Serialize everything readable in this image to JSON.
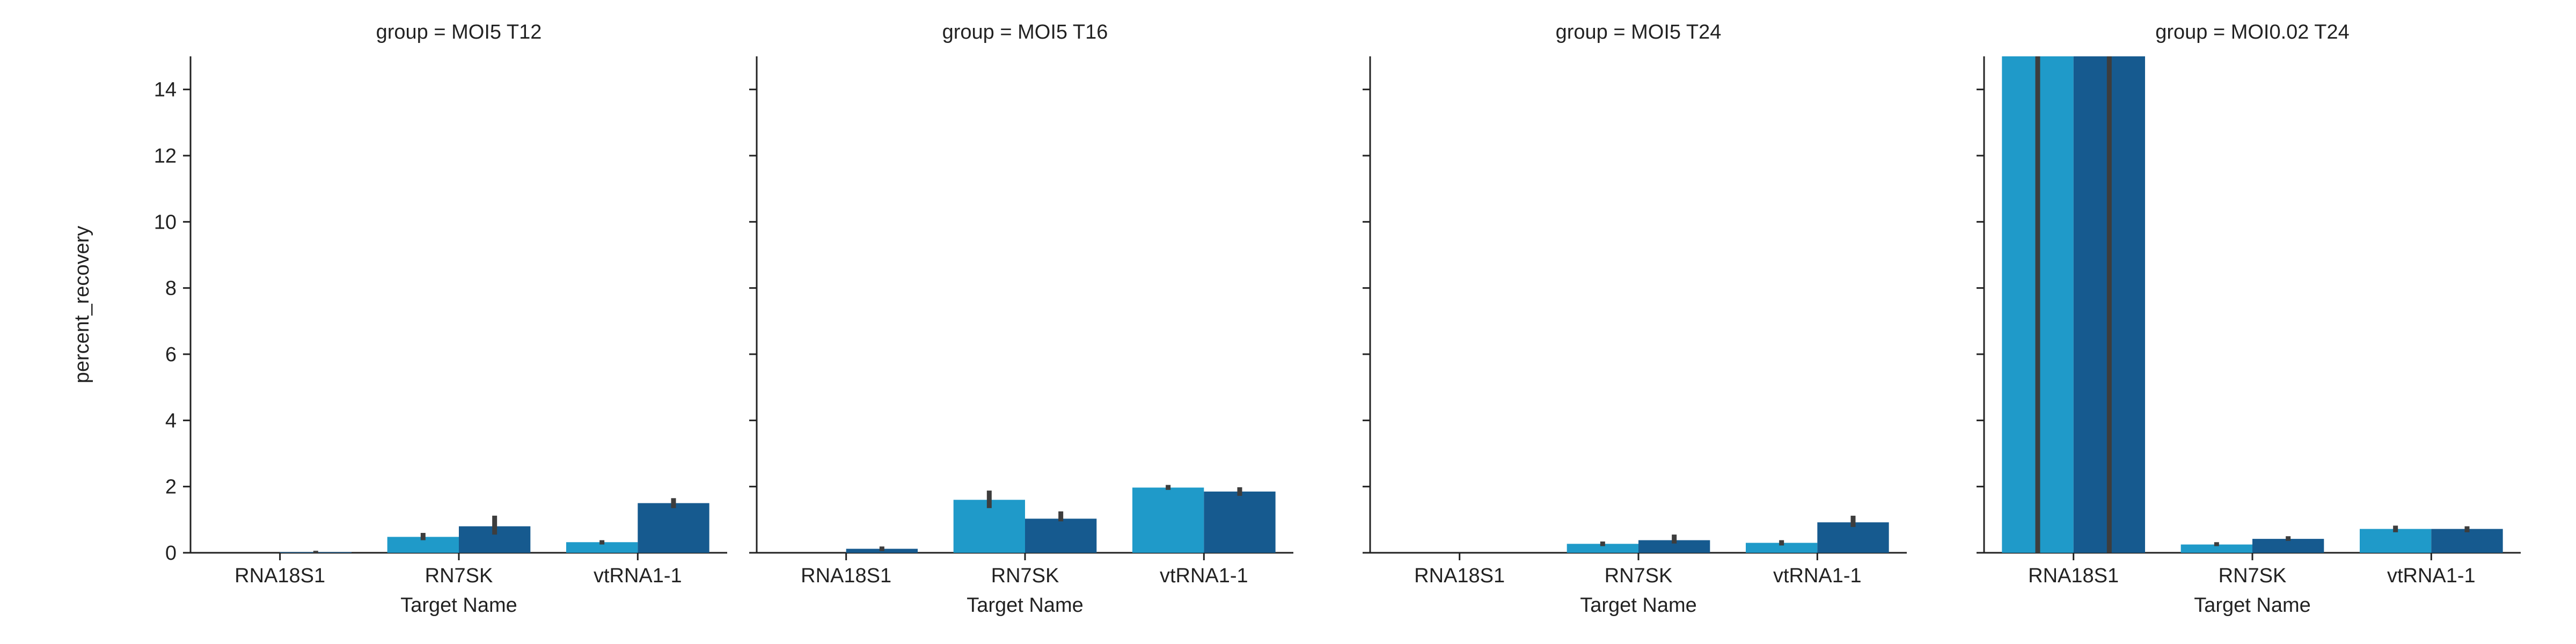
{
  "chart_data": [
    {
      "type": "bar",
      "title": "group = MOI5 T12",
      "xlabel": "Target Name",
      "ylabel": "percent_recovery",
      "ylim": [
        0,
        15
      ],
      "yticks": [
        0,
        2,
        4,
        6,
        8,
        10,
        12,
        14
      ],
      "categories": [
        "RNA18S1",
        "RN7SK",
        "vtRNA1-1"
      ],
      "colors": [
        "#1f9ac9",
        "#165a8f"
      ],
      "series": [
        {
          "values": [
            0.0,
            0.48,
            0.32
          ],
          "ci": [
            [
              0,
              0
            ],
            [
              0.38,
              0.6
            ],
            [
              0.25,
              0.38
            ]
          ]
        },
        {
          "values": [
            0.02,
            0.8,
            1.5
          ],
          "ci": [
            [
              0,
              0.06
            ],
            [
              0.55,
              1.12
            ],
            [
              1.35,
              1.65
            ]
          ]
        }
      ]
    },
    {
      "type": "bar",
      "title": "group = MOI5 T16",
      "xlabel": "Target Name",
      "ylabel": "",
      "ylim": [
        0,
        15
      ],
      "yticks": [
        0,
        2,
        4,
        6,
        8,
        10,
        12,
        14
      ],
      "categories": [
        "RNA18S1",
        "RN7SK",
        "vtRNA1-1"
      ],
      "colors": [
        "#1f9ac9",
        "#165a8f"
      ],
      "series": [
        {
          "values": [
            0.0,
            1.6,
            1.97
          ],
          "ci": [
            [
              0,
              0
            ],
            [
              1.35,
              1.88
            ],
            [
              1.9,
              2.05
            ]
          ]
        },
        {
          "values": [
            0.12,
            1.03,
            1.85
          ],
          "ci": [
            [
              0.05,
              0.19
            ],
            [
              0.95,
              1.25
            ],
            [
              1.72,
              1.98
            ]
          ]
        }
      ]
    },
    {
      "type": "bar",
      "title": "group = MOI5 T24",
      "xlabel": "Target Name",
      "ylabel": "",
      "ylim": [
        0,
        15
      ],
      "yticks": [
        0,
        2,
        4,
        6,
        8,
        10,
        12,
        14
      ],
      "categories": [
        "RNA18S1",
        "RN7SK",
        "vtRNA1-1"
      ],
      "colors": [
        "#1f9ac9",
        "#165a8f"
      ],
      "series": [
        {
          "values": [
            0.0,
            0.27,
            0.3
          ],
          "ci": [
            [
              0,
              0
            ],
            [
              0.2,
              0.34
            ],
            [
              0.22,
              0.38
            ]
          ]
        },
        {
          "values": [
            0.0,
            0.38,
            0.92
          ],
          "ci": [
            [
              0,
              0
            ],
            [
              0.28,
              0.55
            ],
            [
              0.78,
              1.12
            ]
          ]
        }
      ]
    },
    {
      "type": "bar",
      "title": "group = MOI0.02 T24",
      "xlabel": "Target Name",
      "ylabel": "",
      "ylim": [
        0,
        15
      ],
      "yticks": [
        0,
        2,
        4,
        6,
        8,
        10,
        12,
        14
      ],
      "categories": [
        "RNA18S1",
        "RN7SK",
        "vtRNA1-1"
      ],
      "colors": [
        "#1f9ac9",
        "#165a8f"
      ],
      "series": [
        {
          "values": [
            15.0,
            0.25,
            0.72
          ],
          "ci": [
            [
              0,
              15
            ],
            [
              0.2,
              0.32
            ],
            [
              0.62,
              0.82
            ]
          ]
        },
        {
          "values": [
            15.0,
            0.42,
            0.72
          ],
          "ci": [
            [
              0,
              15
            ],
            [
              0.36,
              0.5
            ],
            [
              0.62,
              0.8
            ]
          ]
        }
      ]
    }
  ]
}
